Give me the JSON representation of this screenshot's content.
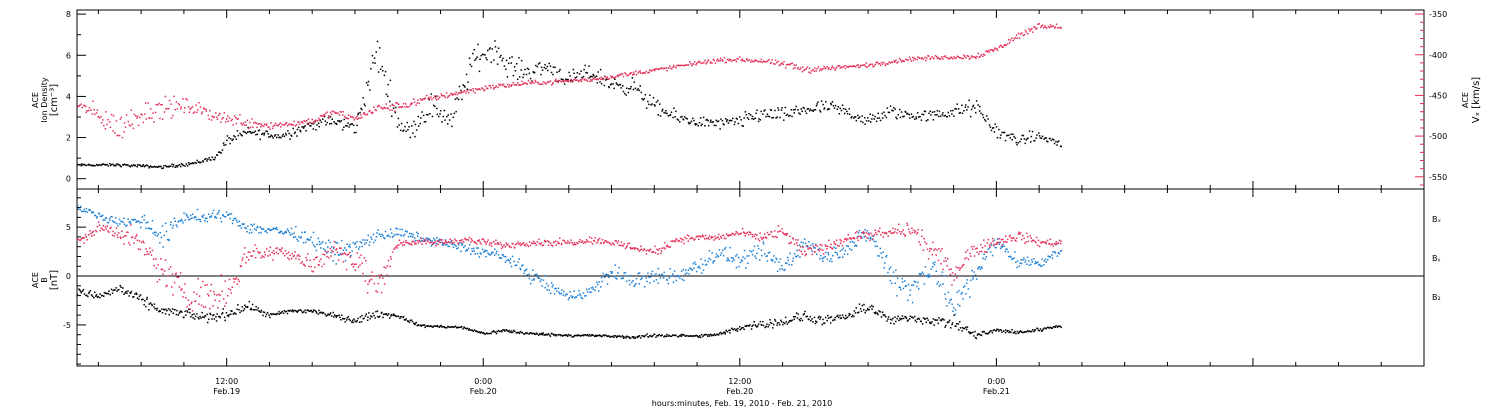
{
  "colors": {
    "black": "#000000",
    "pink": "#e3305a",
    "blue": "#1b7fd6",
    "axis": "#000000"
  },
  "chart_data": [
    {
      "type": "scatter",
      "name": "top-panel",
      "xlabel": "hours:minutes, Feb. 19, 2010 - Feb. 21, 2010",
      "xlim": [
        5,
        68
      ],
      "x_ticks": [
        {
          "hour": 12,
          "time": "12:00",
          "date": "Feb.19"
        },
        {
          "hour": 24,
          "time": "0:00",
          "date": "Feb.20"
        },
        {
          "hour": 36,
          "time": "12:00",
          "date": "Feb.20"
        },
        {
          "hour": 48,
          "time": "0:00",
          "date": "Feb.21"
        }
      ],
      "left_axis": {
        "label_line1": "ACE",
        "label_line2": "Ion Density",
        "unit": "[cm⁻³]",
        "ylim": [
          -0.5,
          8.2
        ],
        "ticks": [
          "0",
          "2",
          "4",
          "6",
          "8"
        ],
        "tick_values": [
          0,
          2,
          4,
          6,
          8
        ]
      },
      "right_axis": {
        "label_line1": "ACE",
        "label_line2": "Vₓ [km/s]",
        "ylim": [
          -565,
          -345
        ],
        "ticks": [
          "-350",
          "-400",
          "-450",
          "-500",
          "-550"
        ],
        "tick_values": [
          -350,
          -400,
          -450,
          -500,
          -550
        ]
      },
      "series": [
        {
          "key": "density",
          "color": "#000000",
          "axis": "left",
          "x": [
            5.0,
            7.0,
            9.0,
            10.5,
            11.5,
            12.0,
            13.0,
            14.5,
            15.5,
            16.5,
            17.0,
            18.0,
            19.0,
            20.0,
            20.5,
            21.5,
            22.5,
            23.5,
            24.5,
            25.0,
            26.0,
            27.0,
            28.0,
            29.0,
            30.0,
            31.0,
            32.0,
            33.0,
            34.0,
            35.0,
            36.0,
            37.0,
            38.0,
            39.0,
            40.0,
            41.0,
            42.0,
            43.0,
            44.0,
            45.0,
            46.0,
            47.0,
            48.0,
            49.0,
            50.0,
            51.0
          ],
          "y": [
            0.7,
            0.7,
            0.6,
            0.8,
            1.1,
            1.9,
            2.3,
            2.1,
            2.5,
            2.8,
            2.8,
            2.5,
            6.2,
            2.8,
            2.3,
            3.6,
            2.9,
            5.8,
            6.4,
            5.6,
            5.2,
            5.5,
            4.8,
            5.2,
            4.6,
            4.5,
            3.5,
            3.0,
            2.8,
            2.7,
            2.8,
            3.2,
            3.1,
            3.4,
            3.5,
            3.3,
            2.8,
            3.3,
            3.1,
            3.1,
            3.3,
            3.5,
            2.3,
            1.9,
            2.1,
            1.7
          ],
          "spread": [
            0.08,
            0.1,
            0.1,
            0.15,
            0.2,
            0.35,
            0.35,
            0.35,
            0.4,
            0.4,
            0.45,
            0.5,
            1.4,
            0.7,
            0.6,
            1.0,
            0.9,
            1.0,
            0.8,
            0.8,
            0.7,
            0.7,
            0.6,
            0.6,
            0.6,
            0.6,
            0.6,
            0.45,
            0.4,
            0.4,
            0.5,
            0.6,
            0.5,
            0.5,
            0.5,
            0.5,
            0.5,
            0.5,
            0.4,
            0.4,
            0.5,
            0.6,
            0.5,
            0.4,
            0.4,
            0.3
          ]
        },
        {
          "key": "vx",
          "color": "#e3305a",
          "axis": "right",
          "x": [
            5.0,
            6.0,
            7.0,
            8.0,
            9.0,
            10.0,
            11.0,
            12.0,
            13.0,
            14.0,
            15.0,
            16.0,
            17.0,
            18.0,
            19.0,
            20.0,
            21.0,
            22.0,
            23.0,
            24.0,
            25.0,
            26.0,
            27.0,
            28.0,
            29.0,
            30.0,
            31.0,
            32.0,
            33.0,
            34.0,
            35.0,
            36.0,
            37.0,
            38.0,
            39.0,
            40.0,
            41.0,
            42.0,
            43.0,
            44.0,
            45.0,
            46.0,
            47.0,
            48.0,
            49.0,
            50.0,
            51.0
          ],
          "y": [
            -460,
            -475,
            -490,
            -470,
            -465,
            -462,
            -470,
            -478,
            -482,
            -486,
            -484,
            -480,
            -470,
            -478,
            -465,
            -463,
            -456,
            -450,
            -445,
            -440,
            -437,
            -434,
            -433,
            -431,
            -430,
            -426,
            -422,
            -418,
            -414,
            -409,
            -406,
            -405,
            -407,
            -411,
            -417,
            -416,
            -414,
            -412,
            -408,
            -404,
            -403,
            -402,
            -401,
            -392,
            -376,
            -363,
            -365
          ],
          "spread": [
            10,
            20,
            25,
            25,
            20,
            15,
            12,
            12,
            12,
            8,
            6,
            6,
            6,
            6,
            8,
            8,
            7,
            6,
            5,
            5,
            5,
            4,
            4,
            4,
            4,
            4,
            4,
            4,
            4,
            4,
            4,
            4,
            4,
            6,
            8,
            5,
            4,
            4,
            4,
            4,
            4,
            4,
            5,
            6,
            6,
            5,
            4
          ]
        }
      ]
    },
    {
      "type": "scatter",
      "name": "bottom-panel",
      "xlim": [
        5,
        68
      ],
      "left_axis": {
        "label_line1": "ACE",
        "label_line2": "B",
        "unit": "[nT]",
        "ylim": [
          -9.2,
          8.9
        ],
        "ticks": [
          "5",
          "0",
          "-5"
        ],
        "tick_values": [
          5,
          0,
          -5
        ],
        "zero_line": 0
      },
      "legend_placement": "right",
      "series": [
        {
          "name": "Bₓ",
          "color": "#000000",
          "x": [
            5.0,
            6.0,
            7.0,
            8.0,
            9.0,
            10.0,
            11.0,
            12.0,
            13.0,
            14.0,
            15.0,
            16.0,
            17.0,
            18.0,
            19.0,
            20.0,
            21.0,
            22.0,
            23.0,
            24.0,
            25.0,
            26.0,
            27.0,
            28.0,
            29.0,
            30.0,
            31.0,
            32.0,
            33.0,
            34.0,
            35.0,
            36.0,
            37.0,
            38.0,
            39.0,
            40.0,
            41.0,
            42.0,
            43.0,
            44.0,
            45.0,
            46.0,
            47.0,
            48.0,
            49.0,
            50.0,
            51.0
          ],
          "y": [
            -1.5,
            -2.0,
            -1.2,
            -2.5,
            -3.5,
            -3.8,
            -4.2,
            -3.8,
            -3.0,
            -4.0,
            -3.5,
            -3.5,
            -4.0,
            -4.5,
            -3.8,
            -4.0,
            -5.0,
            -5.1,
            -5.2,
            -5.8,
            -5.5,
            -5.8,
            -5.9,
            -6.0,
            -6.0,
            -6.1,
            -6.2,
            -6.0,
            -6.0,
            -6.1,
            -5.9,
            -5.2,
            -4.8,
            -4.6,
            -4.1,
            -4.5,
            -4.1,
            -3.0,
            -4.5,
            -4.2,
            -4.5,
            -4.8,
            -6.0,
            -5.5,
            -5.7,
            -5.4,
            -5.0
          ],
          "spread": [
            0.5,
            0.6,
            0.8,
            0.8,
            0.7,
            0.6,
            0.8,
            0.8,
            0.6,
            0.4,
            0.4,
            0.4,
            0.4,
            0.5,
            0.6,
            0.3,
            0.2,
            0.2,
            0.2,
            0.2,
            0.3,
            0.2,
            0.2,
            0.2,
            0.2,
            0.2,
            0.2,
            0.3,
            0.2,
            0.2,
            0.3,
            0.5,
            0.6,
            0.7,
            0.9,
            0.6,
            0.7,
            0.9,
            0.6,
            0.6,
            0.7,
            1.0,
            0.6,
            0.3,
            0.3,
            0.3,
            0.2
          ]
        },
        {
          "name": "Bᵧ",
          "color": "#1b7fd6",
          "x": [
            5.0,
            6.0,
            7.0,
            8.0,
            9.0,
            10.0,
            11.0,
            12.0,
            13.0,
            14.0,
            15.0,
            16.0,
            17.0,
            18.0,
            19.0,
            20.0,
            21.0,
            22.0,
            23.0,
            24.0,
            25.0,
            26.0,
            27.0,
            28.0,
            29.0,
            30.0,
            31.0,
            32.0,
            33.0,
            34.0,
            35.0,
            36.0,
            37.0,
            38.0,
            39.0,
            40.0,
            41.0,
            42.0,
            43.0,
            44.0,
            45.0,
            46.0,
            47.0,
            48.0,
            49.0,
            50.0,
            51.0
          ],
          "y": [
            7.0,
            6.3,
            5.5,
            5.8,
            4.0,
            6.2,
            6.0,
            6.3,
            5.0,
            4.8,
            4.5,
            3.8,
            2.5,
            3.0,
            4.2,
            4.5,
            4.0,
            3.5,
            3.0,
            2.5,
            2.0,
            0.5,
            -1.0,
            -2.0,
            -1.5,
            0.5,
            -0.5,
            0.0,
            0.0,
            1.0,
            2.5,
            1.5,
            2.5,
            1.0,
            3.5,
            2.0,
            3.0,
            4.5,
            0.5,
            -1.5,
            1.5,
            -3.5,
            0.5,
            3.5,
            1.5,
            1.5,
            2.8
          ],
          "spread": [
            0.4,
            0.5,
            0.8,
            1.0,
            2.0,
            0.8,
            1.0,
            0.6,
            1.0,
            0.8,
            0.8,
            1.2,
            1.5,
            1.2,
            1.0,
            0.8,
            0.6,
            0.6,
            0.8,
            0.8,
            0.9,
            1.0,
            1.0,
            0.8,
            1.0,
            1.2,
            1.2,
            1.2,
            1.2,
            1.4,
            1.2,
            1.2,
            1.4,
            1.8,
            1.2,
            1.2,
            1.3,
            1.2,
            2.2,
            2.2,
            2.2,
            2.4,
            2.0,
            1.2,
            1.0,
            0.9,
            0.8
          ]
        },
        {
          "name": "B₂",
          "color": "#e3305a",
          "x": [
            5.0,
            6.0,
            7.0,
            8.0,
            9.0,
            10.0,
            11.0,
            12.0,
            13.0,
            14.0,
            15.0,
            16.0,
            17.0,
            18.0,
            19.0,
            20.0,
            21.0,
            22.0,
            23.0,
            24.0,
            25.0,
            26.0,
            27.0,
            28.0,
            29.0,
            30.0,
            31.0,
            32.0,
            33.0,
            34.0,
            35.0,
            36.0,
            37.0,
            38.0,
            39.0,
            40.0,
            41.0,
            42.0,
            43.0,
            44.0,
            45.0,
            46.0,
            47.0,
            48.0,
            49.0,
            50.0,
            51.0
          ],
          "y": [
            3.5,
            5.0,
            4.5,
            3.0,
            0.5,
            -1.5,
            -2.0,
            -1.5,
            2.5,
            2.5,
            2.5,
            1.0,
            3.0,
            1.5,
            -1.0,
            3.5,
            3.5,
            3.5,
            3.8,
            3.5,
            3.2,
            3.5,
            3.5,
            3.5,
            3.8,
            3.5,
            3.0,
            2.5,
            3.8,
            4.0,
            4.0,
            4.5,
            4.0,
            4.5,
            2.5,
            3.0,
            4.0,
            4.2,
            4.5,
            4.8,
            2.5,
            0.5,
            3.0,
            3.5,
            4.2,
            3.5,
            3.5
          ],
          "spread": [
            0.8,
            0.8,
            1.2,
            2.0,
            2.5,
            2.5,
            2.5,
            2.5,
            1.5,
            1.2,
            1.2,
            1.5,
            1.0,
            2.5,
            2.5,
            0.6,
            0.5,
            0.5,
            0.5,
            0.5,
            0.6,
            0.5,
            0.5,
            0.5,
            0.5,
            0.6,
            0.6,
            0.8,
            0.6,
            0.5,
            0.5,
            0.5,
            0.8,
            1.0,
            1.0,
            0.8,
            0.8,
            0.8,
            0.8,
            1.2,
            1.5,
            1.8,
            1.2,
            1.0,
            0.8,
            0.6,
            0.5
          ]
        }
      ]
    }
  ]
}
